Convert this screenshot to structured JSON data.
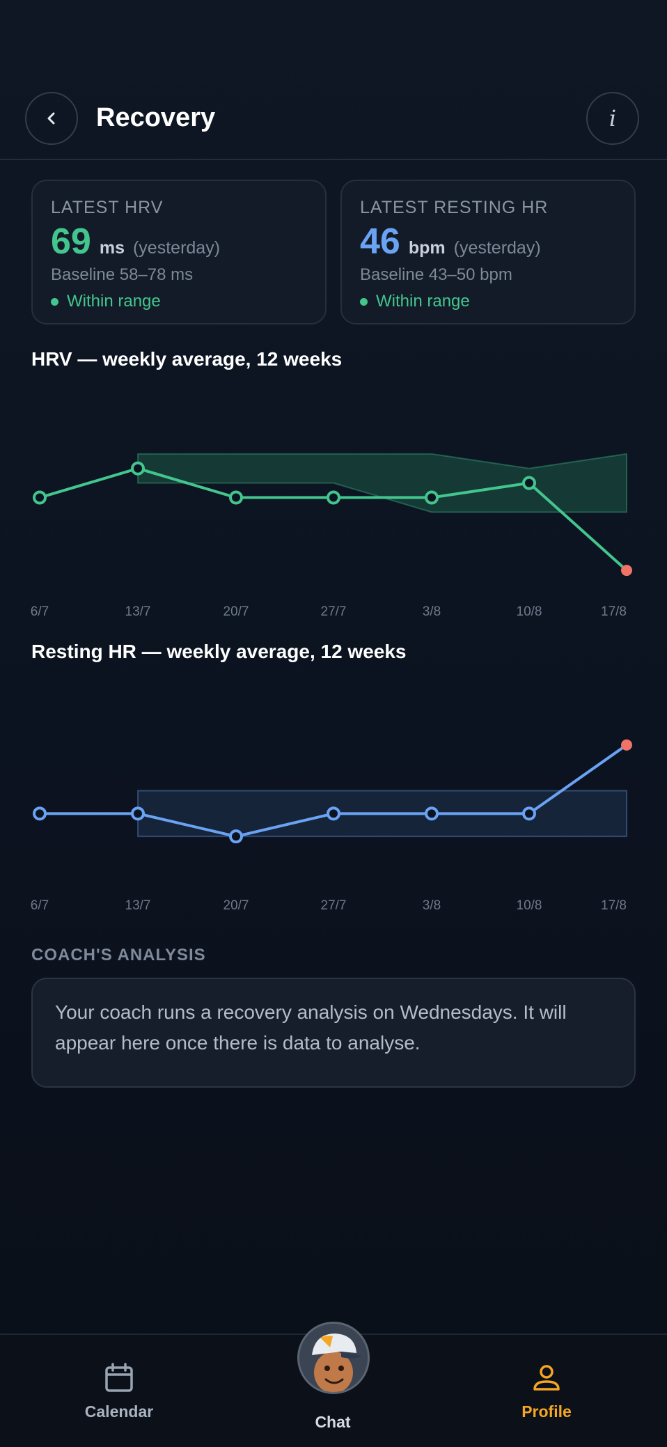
{
  "header": {
    "title": "Recovery"
  },
  "cards": [
    {
      "label": "LATEST HRV",
      "value": "69",
      "unit": "ms",
      "when": "(yesterday)",
      "baseline": "Baseline 58–78 ms",
      "status": "Within range",
      "color": "#43c68e"
    },
    {
      "label": "LATEST RESTING HR",
      "value": "46",
      "unit": "bpm",
      "when": "(yesterday)",
      "baseline": "Baseline 43–50 bpm",
      "status": "Within range",
      "color": "#6aa3f4"
    }
  ],
  "hrv_section_title": "HRV — weekly average, 12 weeks",
  "rhr_section_title": "Resting HR — weekly average, 12 weeks",
  "chart_data": [
    {
      "type": "line",
      "x": [
        "6/7",
        "13/7",
        "20/7",
        "27/7",
        "3/8",
        "10/8",
        "17/8"
      ],
      "series": [
        {
          "values": [
            68,
            70,
            68,
            68,
            68,
            69,
            63
          ]
        }
      ],
      "baseline_band": {
        "lower": [
          null,
          69,
          69,
          69,
          67,
          67,
          67
        ],
        "upper": [
          null,
          71,
          71,
          71,
          71,
          70,
          71
        ]
      },
      "ylim": [
        62,
        73
      ],
      "highlight_last": true,
      "colors": {
        "line": "#43c68e",
        "band": "#1d5a47",
        "last_point": "#f07466"
      }
    },
    {
      "type": "line",
      "x": [
        "6/7",
        "13/7",
        "20/7",
        "27/7",
        "3/8",
        "10/8",
        "17/8"
      ],
      "series": [
        {
          "values": [
            46,
            46,
            45,
            46,
            46,
            46,
            49
          ]
        }
      ],
      "baseline_band": {
        "lower": [
          null,
          45,
          45,
          45,
          45,
          45,
          45
        ],
        "upper": [
          null,
          47,
          47,
          47,
          47,
          47,
          47
        ]
      },
      "ylim": [
        44,
        50
      ],
      "highlight_last": true,
      "colors": {
        "line": "#6aa3f4",
        "band": "#1f3350",
        "last_point": "#f07466"
      }
    }
  ],
  "coach": {
    "label": "COACH'S ANALYSIS",
    "text": "Your coach runs a recovery analysis on Wednesdays. It will appear here once there is data to analyse."
  },
  "nav": {
    "calendar": "Calendar",
    "chat": "Chat",
    "profile": "Profile",
    "active_color": "#f5a623"
  }
}
